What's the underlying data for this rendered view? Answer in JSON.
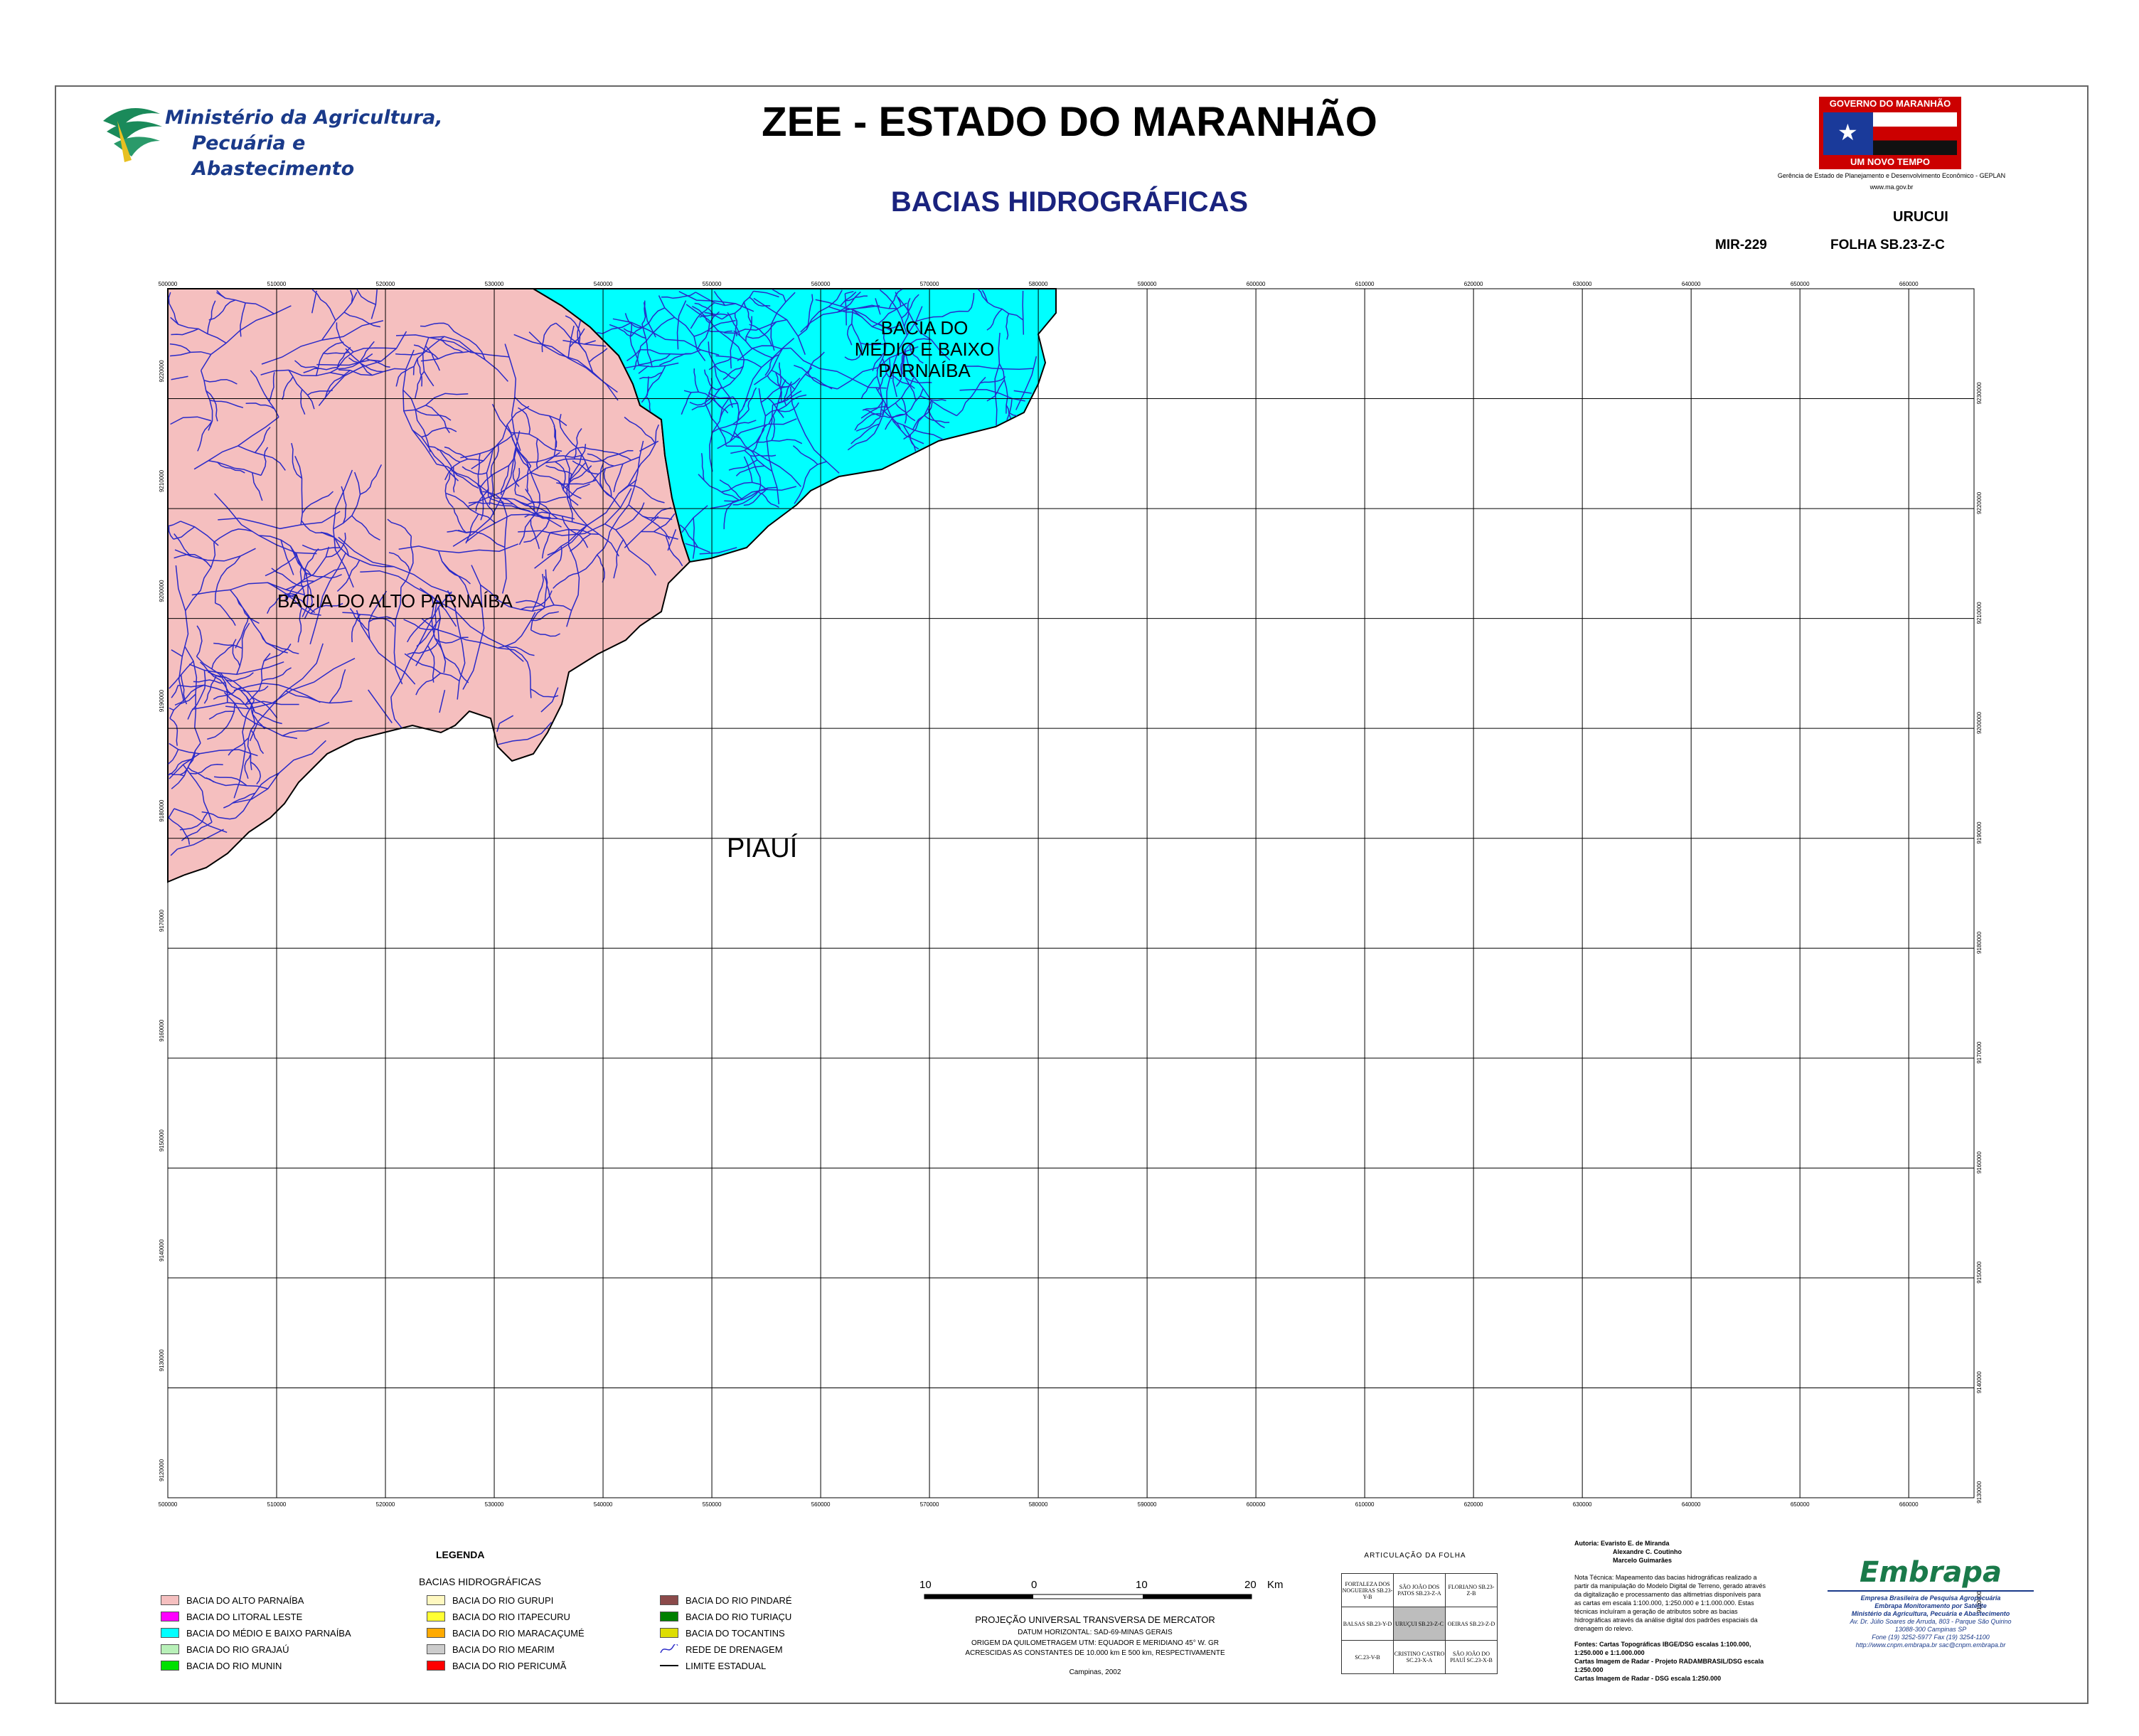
{
  "header": {
    "title": "ZEE - ESTADO DO MARANHÃO",
    "subtitle": "BACIAS HIDROGRÁFICAS",
    "ministry_line1": "Ministério da Agricultura,",
    "ministry_line2": "Pecuária e Abastecimento",
    "gov_banner_top": "GOVERNO DO MARANHÃO",
    "gov_banner_bottom": "UM NOVO TEMPO",
    "geplan_line": "Gerência de Estado de Planejamento e Desenvolvimento Econômico - GEPLAN",
    "gov_site": "www.ma.gov.br",
    "sheet_name": "URUCUI",
    "mir": "MIR-229",
    "folha": "FOLHA SB.23-Z-C"
  },
  "map": {
    "labels": {
      "alto": "BACIA DO ALTO PARNAÍBA",
      "medio_1": "BACIA DO",
      "medio_2": "MÉDIO E BAIXO",
      "medio_3": "PARNAÍBA",
      "piaui": "PIAUÍ"
    },
    "colors": {
      "alto": "#f5bfbf",
      "medio": "#00ffff",
      "rivers": "#2a2ac8",
      "grid": "#000000"
    },
    "easting_ticks": [
      "500000",
      "510000",
      "520000",
      "530000",
      "540000",
      "550000",
      "560000",
      "570000",
      "580000",
      "590000",
      "600000",
      "610000",
      "620000",
      "630000",
      "640000",
      "650000",
      "660000"
    ],
    "northing_ticks_left": [
      "9220000",
      "9210000",
      "9200000",
      "9190000",
      "9180000",
      "9170000",
      "9160000",
      "9150000",
      "9140000",
      "9130000",
      "9120000"
    ],
    "northing_ticks_right": [
      "9230000",
      "9220000",
      "9210000",
      "9200000",
      "9190000",
      "9180000",
      "9170000",
      "9160000",
      "9150000",
      "9140000",
      "9130000",
      "9120000"
    ]
  },
  "legend": {
    "title": "LEGENDA",
    "group_title": "BACIAS HIDROGRÁFICAS",
    "col1": [
      {
        "label": "BACIA DO ALTO PARNAÍBA",
        "color": "#f5bfbf"
      },
      {
        "label": "BACIA DO LITORAL LESTE",
        "color": "#ff00ff"
      },
      {
        "label": "BACIA DO MÉDIO E BAIXO PARNAÍBA",
        "color": "#00ffff"
      },
      {
        "label": "BACIA DO RIO GRAJAÚ",
        "color": "#b8f0b8"
      },
      {
        "label": "BACIA DO RIO MUNIN",
        "color": "#00e000"
      }
    ],
    "col2": [
      {
        "label": "BACIA DO RIO GURUPI",
        "color": "#fff8c0"
      },
      {
        "label": "BACIA DO RIO ITAPECURU",
        "color": "#ffff33"
      },
      {
        "label": "BACIA DO RIO MARACAÇUMÉ",
        "color": "#ffaa00"
      },
      {
        "label": "BACIA DO RIO MEARIM",
        "color": "#cccccc"
      },
      {
        "label": "BACIA DO RIO PERICUMÃ",
        "color": "#ff0000"
      }
    ],
    "col3": [
      {
        "label": "BACIA DO RIO PINDARÉ",
        "color": "#8b4a4a"
      },
      {
        "label": "BACIA DO RIO TURIAÇU",
        "color": "#008000"
      },
      {
        "label": "BACIA DO TOCANTINS",
        "color": "#dddd00"
      },
      {
        "label": "REDE DE DRENAGEM",
        "color": "#2a2ac8"
      },
      {
        "label": "LIMITE ESTADUAL",
        "color": "#000000"
      }
    ]
  },
  "scale": {
    "labels": [
      "10",
      "0",
      "10",
      "20",
      "Km"
    ],
    "projection": "PROJEÇÃO UNIVERSAL TRANSVERSA DE MERCATOR",
    "datum": "DATUM HORIZONTAL: SAD-69-MINAS GERAIS",
    "origin": "ORIGEM DA QUILOMETRAGEM UTM: EQUADOR E MERIDIANO 45° W. GR",
    "constants": "ACRESCIDAS AS CONSTANTES DE 10.000 km E 500 km, RESPECTIVAMENTE",
    "place_date": "Campinas, 2002"
  },
  "articulation": {
    "title": "ARTICULAÇÃO DA FOLHA",
    "rows": [
      [
        "FORTALEZA DOS NOGUEIRAS SB.23-Y-B",
        "SÃO JOÃO DOS PATOS SB.23-Z-A",
        "FLORIANO SB.23-Z-B"
      ],
      [
        "BALSAS SB.23-Y-D",
        "URUÇUI SB.23-Z-C",
        "OEIRAS SB.23-Z-D"
      ],
      [
        "SC.23-V-B",
        "CRISTINO CASTRO SC.23-X-A",
        "SÃO JOÃO DO PIAUÍ SC.23-X-B"
      ]
    ]
  },
  "credits": {
    "authors": "Autoria: Evaristo E. de Miranda",
    "author2": "Alexandre C. Coutinho",
    "author3": "Marcelo Guimarães",
    "note": "Nota Técnica: Mapeamento das bacias hidrográficas realizado a partir da manipulação do Modelo Digital de Terreno, gerado através da digitalização e processamento das altimetrias disponíveis para as cartas em escala 1:100.000, 1:250.000 e 1:1.000.000. Estas técnicas incluíram a geração de atributos sobre as bacias hidrográficas através da análise digital dos padrões espaciais da drenagem do relevo.",
    "sources1": "Fontes: Cartas Topográficas IBGE/DSG escalas 1:100.000, 1:250.000 e 1:1.000.000",
    "sources2": "Cartas Imagem de Radar - Projeto RADAMBRASIL/DSG escala 1:250.000",
    "sources3": "Cartas Imagem de Radar - DSG escala 1:250.000"
  },
  "embrapa": {
    "logo": "Embrapa",
    "line1": "Empresa Brasileira de Pesquisa Agropecuária",
    "line2": "Embrapa Monitoramento por Satélite",
    "line3": "Ministério da Agricultura, Pecuária e Abastecimento",
    "line4": "Av. Dr. Júlio Soares de Arruda, 803 - Parque São Quirino",
    "line5": "13088-300 Campinas SP",
    "line6": "Fone (19) 3252-5977 Fax (19) 3254-1100",
    "line7": "http://www.cnpm.embrapa.br  sac@cnpm.embrapa.br"
  }
}
